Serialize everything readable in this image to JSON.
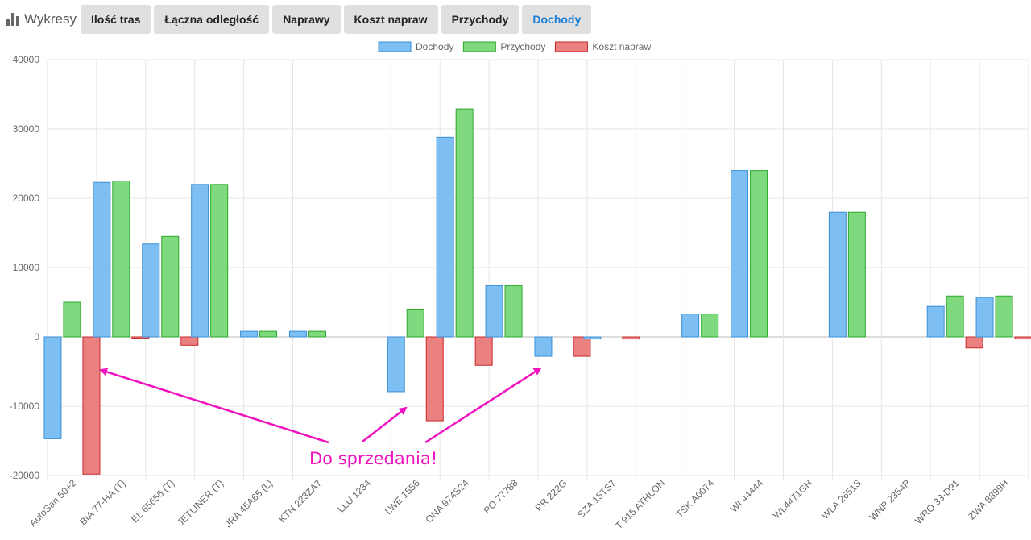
{
  "app": {
    "title": "Wykresy",
    "icon": "bar-chart-icon"
  },
  "tabs": [
    {
      "label": "Ilość tras",
      "active": false
    },
    {
      "label": "Łączna odległość",
      "active": false
    },
    {
      "label": "Naprawy",
      "active": false
    },
    {
      "label": "Koszt napraw",
      "active": false
    },
    {
      "label": "Przychody",
      "active": false
    },
    {
      "label": "Dochody",
      "active": true
    }
  ],
  "annotation": {
    "text": "Do sprzedania!",
    "color": "#f012be",
    "points_to": [
      "AutoSan 50+2",
      "LWE 1556",
      "PR 222G"
    ]
  },
  "chart_data": {
    "type": "bar",
    "legend_position": "top-center",
    "grid": true,
    "ylim": [
      -20000,
      40000
    ],
    "yticks": [
      40000,
      30000,
      20000,
      10000,
      0,
      -10000,
      -20000
    ],
    "categories": [
      "AutoSan 50+2",
      "BIA 77-HA (T)",
      "EL 65656 (T)",
      "JETLINER (T)",
      "JRA 45A65 (L)",
      "KTN 223ZA7",
      "LLU 1234",
      "LWE 1556",
      "ONA 974S24",
      "PO 77788",
      "PR 222G",
      "SZA 15TS7",
      "T 915 ATHLON",
      "TSK A0074",
      "WI 44444",
      "WL4471GH",
      "WLA 2651S",
      "WNP 2354P",
      "WRO 33-D91",
      "ZWA 8899H"
    ],
    "series": [
      {
        "name": "Dochody",
        "fill": "#7dbff2",
        "stroke": "#3a8fd6",
        "values": [
          -14700,
          22300,
          13400,
          22000,
          800,
          800,
          0,
          -7900,
          28800,
          7400,
          -2800,
          -300,
          0,
          3300,
          24000,
          0,
          18000,
          0,
          4400,
          5700
        ]
      },
      {
        "name": "Przychody",
        "fill": "#7fd97f",
        "stroke": "#2ea82e",
        "values": [
          5000,
          22500,
          14500,
          22000,
          800,
          800,
          0,
          3900,
          32900,
          7400,
          0,
          0,
          0,
          3300,
          24000,
          0,
          18000,
          0,
          5900,
          5900
        ]
      },
      {
        "name": "Koszt napraw",
        "fill": "#ea8080",
        "stroke": "#c82828",
        "values": [
          -19800,
          -200,
          -1200,
          0,
          0,
          0,
          0,
          -12100,
          -4100,
          0,
          -2800,
          -300,
          0,
          0,
          0,
          0,
          0,
          0,
          -1600,
          -300
        ]
      }
    ]
  }
}
